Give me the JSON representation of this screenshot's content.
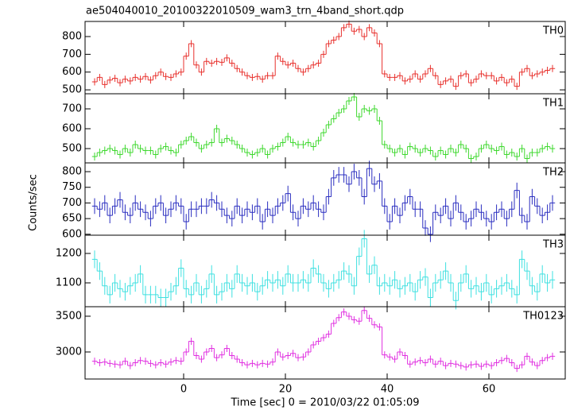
{
  "chart_data": {
    "type": "step",
    "title": "ae504040010_20100322010509_wam3_trn_4band_short.qdp",
    "xlabel": "Time [sec] 0 = 2010/03/22 01:05:09",
    "ylabel": "Counts/sec",
    "xlim": [
      -19.375,
      75
    ],
    "xticks": [
      0,
      20,
      40,
      60
    ],
    "x": [
      -17.5,
      -16.5,
      -15.5,
      -14.5,
      -13.5,
      -12.5,
      -11.5,
      -10.5,
      -9.5,
      -8.5,
      -7.5,
      -6.5,
      -5.5,
      -4.5,
      -3.5,
      -2.5,
      -1.5,
      -0.5,
      0.5,
      1.5,
      2.5,
      3.5,
      4.5,
      5.5,
      6.5,
      7.5,
      8.5,
      9.5,
      10.5,
      11.5,
      12.5,
      13.5,
      14.5,
      15.5,
      16.5,
      17.5,
      18.5,
      19.5,
      20.5,
      21.5,
      22.5,
      23.5,
      24.5,
      25.5,
      26.5,
      27.5,
      28.5,
      29.5,
      30.5,
      31.5,
      32.5,
      33.5,
      34.5,
      35.5,
      36.5,
      37.5,
      38.5,
      39.5,
      40.5,
      41.5,
      42.5,
      43.5,
      44.5,
      45.5,
      46.5,
      47.5,
      48.5,
      49.5,
      50.5,
      51.5,
      52.5,
      53.5,
      54.5,
      55.5,
      56.5,
      57.5,
      58.5,
      59.5,
      60.5,
      61.5,
      62.5,
      63.5,
      64.5,
      65.5,
      66.5,
      67.5,
      68.5,
      69.5,
      70.5,
      71.5,
      72.5
    ],
    "panels": [
      {
        "name": "TH0",
        "color": "#e8302c",
        "ylim": [
          478,
          885
        ],
        "yticks": [
          500,
          600,
          700,
          800
        ],
        "error": 20,
        "values": [
          545,
          570,
          530,
          555,
          565,
          540,
          560,
          550,
          570,
          560,
          575,
          555,
          580,
          600,
          575,
          570,
          590,
          600,
          690,
          760,
          640,
          600,
          660,
          650,
          660,
          655,
          680,
          650,
          620,
          600,
          580,
          570,
          575,
          560,
          580,
          580,
          690,
          660,
          640,
          650,
          620,
          600,
          620,
          640,
          650,
          700,
          760,
          780,
          800,
          850,
          870,
          830,
          840,
          800,
          850,
          820,
          760,
          590,
          570,
          570,
          580,
          550,
          560,
          590,
          560,
          590,
          620,
          580,
          530,
          550,
          560,
          520,
          580,
          590,
          540,
          560,
          590,
          580,
          580,
          550,
          570,
          540,
          560,
          520,
          600,
          620,
          580,
          590,
          600,
          610,
          620
        ]
      },
      {
        "name": "TH1",
        "color": "#3ed82e",
        "ylim": [
          428,
          776
        ],
        "yticks": [
          500,
          600,
          700
        ],
        "error": 20,
        "values": [
          460,
          480,
          490,
          500,
          490,
          470,
          500,
          480,
          520,
          500,
          490,
          490,
          470,
          500,
          510,
          490,
          480,
          520,
          540,
          560,
          530,
          500,
          520,
          530,
          600,
          530,
          550,
          540,
          520,
          500,
          480,
          470,
          480,
          500,
          470,
          500,
          510,
          530,
          560,
          530,
          520,
          520,
          530,
          510,
          540,
          580,
          620,
          650,
          680,
          700,
          740,
          760,
          660,
          700,
          690,
          700,
          640,
          520,
          500,
          480,
          500,
          470,
          510,
          500,
          480,
          500,
          490,
          460,
          490,
          470,
          500,
          480,
          520,
          500,
          450,
          460,
          500,
          520,
          500,
          490,
          510,
          470,
          480,
          460,
          500,
          450,
          480,
          480,
          500,
          510,
          500
        ]
      },
      {
        "name": "TH2",
        "color": "#2a2ec0",
        "ylim": [
          597,
          828
        ],
        "yticks": [
          600,
          650,
          700,
          750,
          800
        ],
        "error": 25,
        "values": [
          690,
          680,
          700,
          660,
          690,
          710,
          670,
          660,
          700,
          680,
          670,
          650,
          690,
          700,
          660,
          680,
          700,
          690,
          640,
          680,
          680,
          690,
          690,
          710,
          700,
          680,
          660,
          650,
          690,
          660,
          680,
          670,
          690,
          640,
          680,
          660,
          690,
          700,
          730,
          670,
          650,
          690,
          680,
          700,
          680,
          670,
          720,
          780,
          790,
          790,
          760,
          800,
          780,
          720,
          810,
          760,
          770,
          690,
          640,
          690,
          660,
          700,
          720,
          680,
          680,
          620,
          600,
          670,
          660,
          690,
          650,
          700,
          670,
          640,
          650,
          680,
          670,
          650,
          640,
          670,
          680,
          650,
          680,
          740,
          660,
          640,
          720,
          690,
          660,
          670,
          700
        ]
      },
      {
        "name": "TH3",
        "color": "#3ee0e0",
        "ylim": [
          1019,
          1262
        ],
        "yticks": [
          1100,
          1200
        ],
        "error": 30,
        "values": [
          1180,
          1140,
          1090,
          1060,
          1100,
          1080,
          1070,
          1090,
          1100,
          1130,
          1060,
          1060,
          1060,
          1050,
          1050,
          1070,
          1090,
          1150,
          1080,
          1060,
          1100,
          1060,
          1080,
          1130,
          1060,
          1070,
          1100,
          1080,
          1130,
          1100,
          1090,
          1100,
          1070,
          1090,
          1110,
          1100,
          1110,
          1090,
          1130,
          1100,
          1100,
          1110,
          1100,
          1150,
          1130,
          1100,
          1080,
          1100,
          1110,
          1140,
          1130,
          1090,
          1190,
          1250,
          1130,
          1160,
          1090,
          1100,
          1090,
          1110,
          1080,
          1090,
          1100,
          1070,
          1110,
          1120,
          1050,
          1100,
          1110,
          1140,
          1100,
          1040,
          1100,
          1130,
          1080,
          1090,
          1070,
          1100,
          1060,
          1080,
          1090,
          1100,
          1080,
          1060,
          1180,
          1140,
          1090,
          1070,
          1130,
          1100,
          1110
        ]
      },
      {
        "name": "TH0123",
        "color": "#e030e0",
        "ylim": [
          2622,
          3633
        ],
        "yticks": [
          3000,
          3500
        ],
        "error": 50,
        "values": [
          2870,
          2850,
          2860,
          2840,
          2830,
          2820,
          2870,
          2810,
          2850,
          2880,
          2870,
          2840,
          2820,
          2850,
          2830,
          2860,
          2880,
          2870,
          3000,
          3150,
          2950,
          2900,
          3000,
          3050,
          2920,
          2960,
          3050,
          2950,
          2900,
          2850,
          2820,
          2840,
          2820,
          2840,
          2830,
          2860,
          3000,
          2930,
          2950,
          2980,
          2920,
          2930,
          3000,
          3100,
          3150,
          3200,
          3250,
          3400,
          3480,
          3560,
          3500,
          3450,
          3430,
          3580,
          3470,
          3380,
          3350,
          2960,
          2930,
          2900,
          3000,
          2950,
          2830,
          2860,
          2880,
          2850,
          2900,
          2830,
          2870,
          2810,
          2840,
          2830,
          2810,
          2790,
          2820,
          2830,
          2800,
          2830,
          2810,
          2850,
          2880,
          2910,
          2850,
          2770,
          2820,
          2940,
          2860,
          2810,
          2880,
          2920,
          2940
        ]
      }
    ]
  }
}
